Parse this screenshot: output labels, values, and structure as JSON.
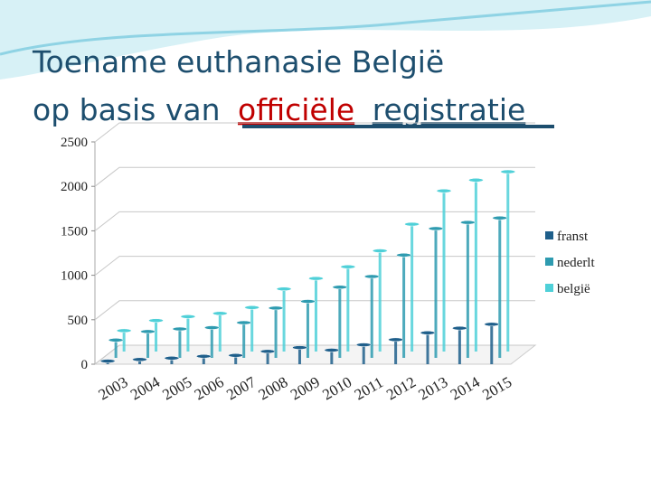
{
  "chart_data": {
    "type": "bar3d",
    "title": [
      "Toename euthanasie België",
      "op basis van",
      "officiële",
      "registratie"
    ],
    "categories": [
      "2003",
      "2004",
      "2005",
      "2006",
      "2007",
      "2008",
      "2009",
      "2010",
      "2011",
      "2012",
      "2013",
      "2014",
      "2015"
    ],
    "series": [
      {
        "name": "franst",
        "color": "#1f5f8b",
        "values": [
          35,
          53,
          68,
          89,
          99,
          144,
          187,
          158,
          218,
          276,
          353,
          405,
          449
        ]
      },
      {
        "name": "nederlt",
        "color": "#2e9bb0",
        "values": [
          200,
          296,
          325,
          340,
          396,
          560,
          635,
          795,
          915,
          1156,
          1454,
          1523,
          1573
        ]
      },
      {
        "name": "belgië",
        "color": "#4fd0d8",
        "values": [
          235,
          349,
          393,
          429,
          495,
          704,
          822,
          953,
          1133,
          1432,
          1807,
          1928,
          2022
        ]
      }
    ],
    "ylim": [
      0,
      2500
    ],
    "yticks": [
      0,
      500,
      1000,
      1500,
      2000,
      2500
    ],
    "grid": true,
    "legend": "right"
  }
}
